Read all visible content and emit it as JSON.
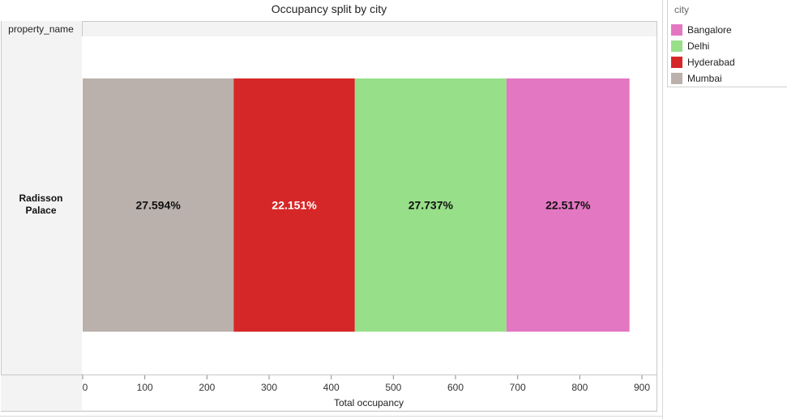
{
  "chart_data": {
    "type": "bar",
    "orientation": "horizontal-stacked",
    "title": "Occupancy split by city",
    "row_header": "property_name",
    "categories": [
      "Radisson Palace"
    ],
    "category_display": [
      "Radisson",
      "Palace"
    ],
    "xlabel": "Total occupancy",
    "ylabel": "",
    "xlim": [
      0,
      900
    ],
    "xticks": [
      0,
      100,
      200,
      300,
      400,
      500,
      600,
      700,
      800,
      900
    ],
    "grid": false,
    "legend_title": "city",
    "legend_position": "top-right",
    "legend": [
      {
        "name": "Bangalore",
        "color": "#e377c2"
      },
      {
        "name": "Delhi",
        "color": "#98df8a"
      },
      {
        "name": "Hyderabad",
        "color": "#d62728"
      },
      {
        "name": "Mumbai",
        "color": "#bab0ac"
      }
    ],
    "series": [
      {
        "name": "Mumbai",
        "values": [
          243
        ],
        "label": "27.594%",
        "color": "#bab0ac",
        "label_color": "#111111"
      },
      {
        "name": "Hyderabad",
        "values": [
          195
        ],
        "label": "22.151%",
        "color": "#d62728",
        "label_color": "#ffffff"
      },
      {
        "name": "Delhi",
        "values": [
          244
        ],
        "label": "27.737%",
        "color": "#98df8a",
        "label_color": "#111111"
      },
      {
        "name": "Bangalore",
        "values": [
          198
        ],
        "label": "22.517%",
        "color": "#e377c2",
        "label_color": "#111111"
      }
    ]
  }
}
